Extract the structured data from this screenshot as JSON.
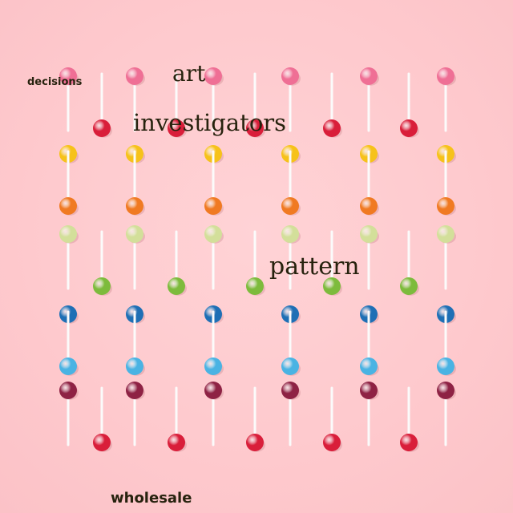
{
  "words": {
    "decisions": "decisions",
    "art": "art",
    "investigators": "investigators",
    "pattern": "pattern",
    "wholesale": "wholesale"
  },
  "lollipop_rows": [
    {
      "color": "pink",
      "hex": "#ef6f95",
      "candy_on": "top"
    },
    {
      "color": "red",
      "hex": "#d91e3a",
      "candy_on": "bottom"
    },
    {
      "color": "yellow",
      "hex": "#f6c21a",
      "candy_on": "top"
    },
    {
      "color": "orange",
      "hex": "#f07a22",
      "candy_on": "bottom"
    },
    {
      "color": "lime",
      "hex": "#d3df9a",
      "candy_on": "top"
    },
    {
      "color": "green",
      "hex": "#7dbb3c",
      "candy_on": "bottom"
    },
    {
      "color": "blue",
      "hex": "#1e6fb5",
      "candy_on": "top"
    },
    {
      "color": "light-blue",
      "hex": "#4ab3e3",
      "candy_on": "bottom"
    },
    {
      "color": "maroon",
      "hex": "#8e2244",
      "candy_on": "top"
    },
    {
      "color": "red",
      "hex": "#d91e3a",
      "candy_on": "bottom"
    }
  ]
}
